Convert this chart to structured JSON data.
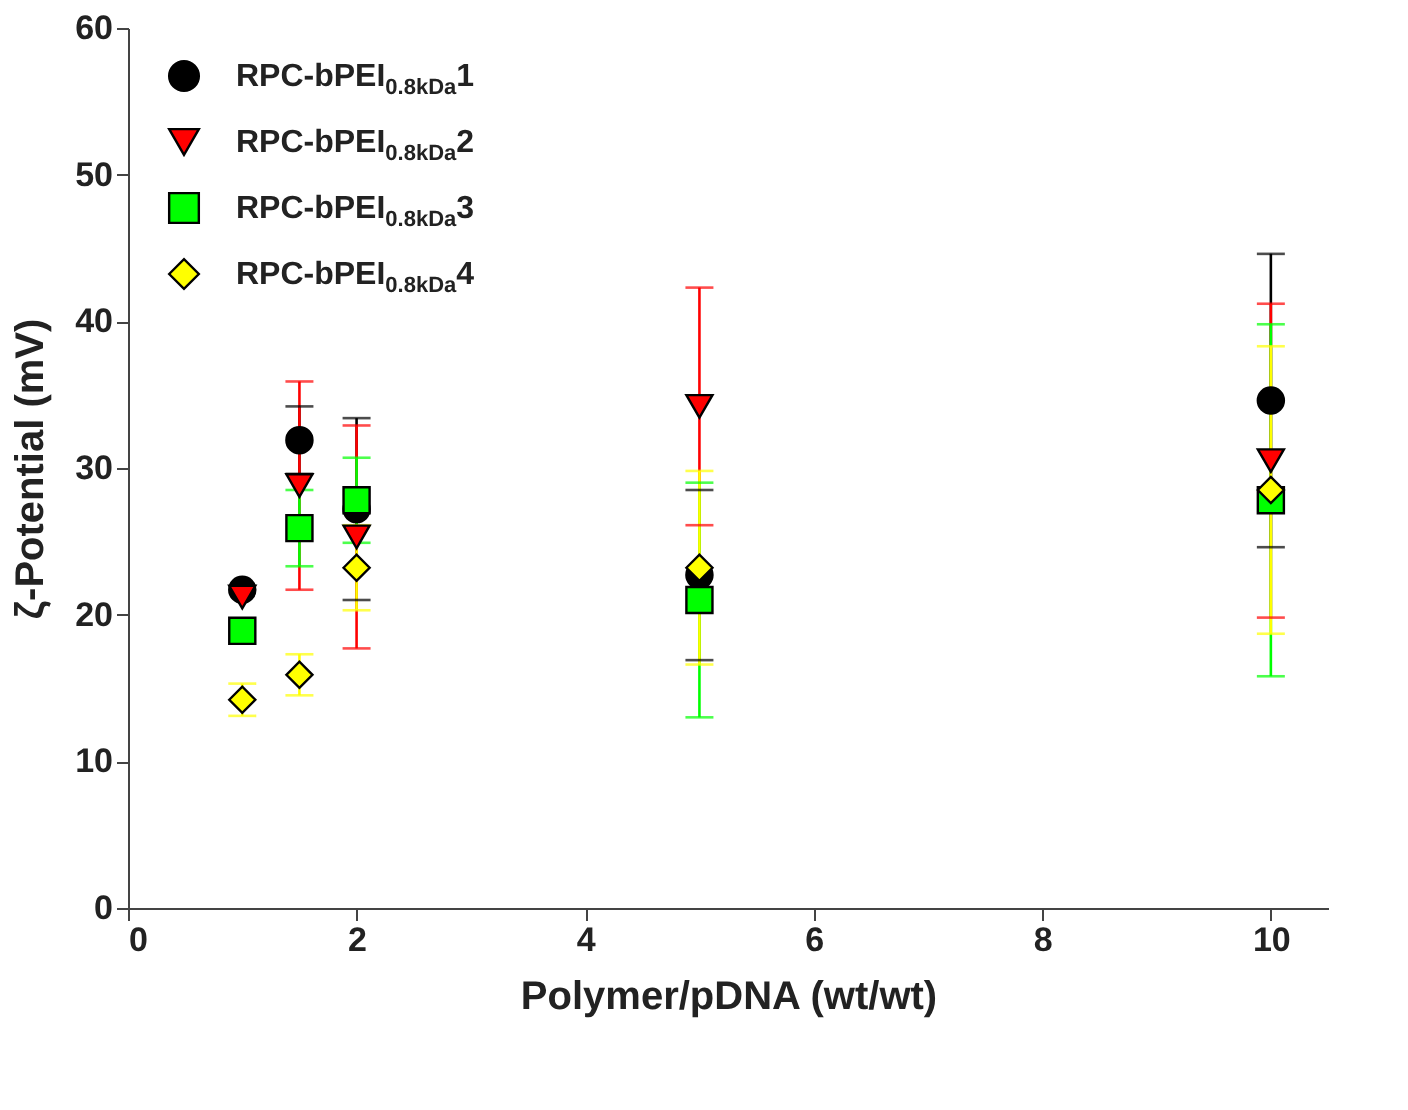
{
  "chart_data": {
    "type": "scatter",
    "xlabel": "Polymer/pDNA (wt/wt)",
    "ylabel": "ζ-Potential (mV)",
    "xlim": [
      0,
      10.5
    ],
    "xticks": [
      0,
      2,
      4,
      6,
      8,
      10
    ],
    "ylim": [
      0,
      60
    ],
    "yticks": [
      0,
      10,
      20,
      30,
      40,
      50,
      60
    ],
    "grid": false,
    "legend": "top left",
    "x": [
      1,
      1.5,
      2,
      5,
      10
    ],
    "series": [
      {
        "name": "RPC-bPEI$_{0.8kDa}$1",
        "color": "#000000",
        "marker": "circle",
        "values": [
          21.7,
          31.9,
          27.2,
          22.7,
          34.6
        ],
        "errors": [
          null,
          2.3,
          6.2,
          5.8,
          10
        ]
      },
      {
        "name": "RPC-bPEI$_{0.8kDa}$2",
        "color": "#ff0000",
        "marker": "triangle",
        "values": [
          21.2,
          28.8,
          25.3,
          34.2,
          30.5
        ],
        "errors": [
          null,
          7.1,
          7.6,
          8.1,
          10.7
        ]
      },
      {
        "name": "RPC-bPEI$_{0.8kDa}$3",
        "color": "#00ff00",
        "marker": "square",
        "values": [
          18.9,
          25.9,
          27.8,
          21.0,
          27.8
        ],
        "errors": [
          null,
          2.6,
          2.9,
          8.0,
          12
        ]
      },
      {
        "name": "RPC-bPEI$_{0.8kDa}$4",
        "color": "#ffff00",
        "marker": "diamond",
        "values": [
          14.2,
          15.9,
          23.2,
          23.2,
          28.5
        ],
        "errors": [
          1.1,
          1.4,
          2.9,
          6.6,
          9.8
        ]
      }
    ]
  }
}
